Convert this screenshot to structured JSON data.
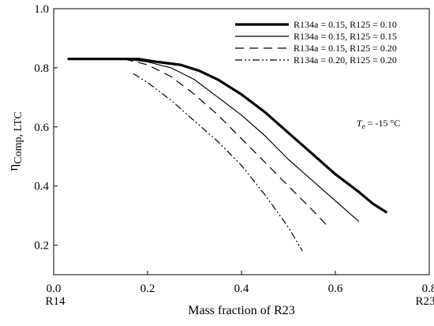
{
  "chart_data": {
    "type": "line",
    "xlabel": "Mass fraction of R23",
    "ylabel_main": "η",
    "ylabel_sub": "Comp, LTC",
    "xlim": [
      0.0,
      0.8
    ],
    "ylim": [
      0.1,
      1.0
    ],
    "x_ticks": [
      {
        "value": 0.0,
        "label": "0.0"
      },
      {
        "value": 0.2,
        "label": "0.2"
      },
      {
        "value": 0.4,
        "label": "0.4"
      },
      {
        "value": 0.6,
        "label": "0.6"
      },
      {
        "value": 0.8,
        "label": "0.8"
      }
    ],
    "x_end_labels": {
      "left": "R14",
      "right": "R23"
    },
    "y_ticks": [
      {
        "value": 0.2,
        "label": "0.2"
      },
      {
        "value": 0.4,
        "label": "0.4"
      },
      {
        "value": 0.6,
        "label": "0.6"
      },
      {
        "value": 0.8,
        "label": "0.8"
      },
      {
        "value": 1.0,
        "label": "1.0"
      }
    ],
    "grid": false,
    "legend_position": "top-right",
    "annotation": {
      "main": "T",
      "sub": "e",
      "rest": " = -15 °C"
    },
    "series": [
      {
        "name": "R134a = 0.15, R125 = 0.10",
        "style": "solid-thick",
        "x": [
          0.03,
          0.1,
          0.15,
          0.18,
          0.22,
          0.27,
          0.31,
          0.35,
          0.4,
          0.45,
          0.5,
          0.55,
          0.6,
          0.65,
          0.68,
          0.71
        ],
        "y": [
          0.83,
          0.83,
          0.83,
          0.83,
          0.82,
          0.81,
          0.79,
          0.76,
          0.71,
          0.65,
          0.58,
          0.51,
          0.44,
          0.38,
          0.34,
          0.31
        ]
      },
      {
        "name": "R134a = 0.15, R125 = 0.15",
        "style": "solid-thin",
        "x": [
          0.03,
          0.1,
          0.15,
          0.2,
          0.25,
          0.3,
          0.35,
          0.4,
          0.45,
          0.5,
          0.55,
          0.6,
          0.65
        ],
        "y": [
          0.83,
          0.83,
          0.83,
          0.82,
          0.8,
          0.76,
          0.7,
          0.64,
          0.57,
          0.49,
          0.42,
          0.35,
          0.28
        ]
      },
      {
        "name": "R134a = 0.15, R125 = 0.20",
        "style": "dashed",
        "x": [
          0.03,
          0.1,
          0.15,
          0.2,
          0.25,
          0.3,
          0.35,
          0.4,
          0.45,
          0.5,
          0.55,
          0.58
        ],
        "y": [
          0.83,
          0.83,
          0.83,
          0.81,
          0.77,
          0.71,
          0.64,
          0.56,
          0.48,
          0.4,
          0.32,
          0.27
        ]
      },
      {
        "name": "R134a = 0.20, R125 = 0.20",
        "style": "dash-dot-dot",
        "x": [
          0.17,
          0.2,
          0.25,
          0.3,
          0.35,
          0.4,
          0.45,
          0.5,
          0.53
        ],
        "y": [
          0.78,
          0.75,
          0.69,
          0.62,
          0.55,
          0.47,
          0.37,
          0.26,
          0.18
        ]
      }
    ]
  }
}
